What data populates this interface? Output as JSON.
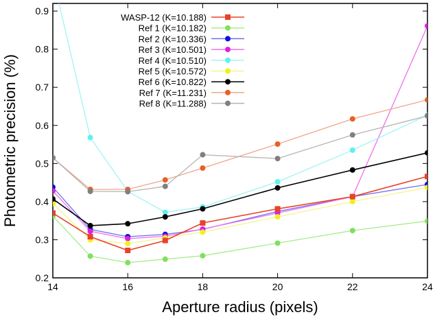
{
  "chart_data": {
    "type": "line",
    "title": "",
    "xlabel": "Aperture radius (pixels)",
    "ylabel": "Photometric precision (%)",
    "xlim": [
      14,
      24
    ],
    "ylim": [
      0.2,
      0.92
    ],
    "x_ticks": [
      14,
      16,
      18,
      20,
      22,
      24
    ],
    "y_ticks": [
      0.2,
      0.3,
      0.4,
      0.5,
      0.6,
      0.7,
      0.8,
      0.9
    ],
    "grid": false,
    "legend_position": "top-left",
    "x": [
      14,
      15,
      16,
      17,
      18,
      20,
      22,
      24
    ],
    "series": [
      {
        "name": "WASP-12 (K=10.188)",
        "color": "#e8432a",
        "line_color": "#e8432a",
        "marker": "square",
        "values": [
          0.37,
          0.308,
          0.272,
          0.298,
          0.344,
          0.381,
          0.413,
          0.466
        ]
      },
      {
        "name": "Ref 1 (K=10.182)",
        "color": "#80e060",
        "line_color": "#a8ec8c",
        "marker": "circle",
        "values": [
          0.362,
          0.257,
          0.24,
          0.249,
          0.258,
          0.291,
          0.324,
          0.349
        ]
      },
      {
        "name": "Ref 2 (K=10.336)",
        "color": "#0f0fe0",
        "line_color": "#7070ee",
        "marker": "circle",
        "values": [
          0.438,
          0.327,
          0.308,
          0.314,
          0.327,
          0.374,
          0.413,
          0.445
        ]
      },
      {
        "name": "Ref 3 (K=10.501)",
        "color": "#e020e0",
        "line_color": "#ee70ee",
        "marker": "circle",
        "values": [
          0.428,
          0.322,
          0.303,
          0.309,
          0.328,
          0.37,
          0.413,
          0.861
        ]
      },
      {
        "name": "Ref 4 (K=10.510)",
        "color": "#60f0f0",
        "line_color": "#a0f4f4",
        "marker": "circle",
        "values": [
          0.99,
          0.568,
          0.427,
          0.372,
          0.386,
          0.452,
          0.535,
          0.627
        ]
      },
      {
        "name": "Ref 5 (K=10.572)",
        "color": "#f0f020",
        "line_color": "#f4f490",
        "marker": "circle",
        "values": [
          0.395,
          0.3,
          0.29,
          0.305,
          0.32,
          0.36,
          0.4,
          0.437
        ]
      },
      {
        "name": "Ref 6 (K=10.822)",
        "color": "#000000",
        "line_color": "#000000",
        "marker": "circle",
        "values": [
          0.407,
          0.337,
          0.342,
          0.36,
          0.381,
          0.436,
          0.483,
          0.528
        ]
      },
      {
        "name": "Ref 7 (K=11.231)",
        "color": "#e86028",
        "line_color": "#f0a48c",
        "marker": "circle",
        "values": [
          0.515,
          0.432,
          0.432,
          0.457,
          0.488,
          0.551,
          0.617,
          0.667
        ]
      },
      {
        "name": "Ref 8 (K=11.288)",
        "color": "#808080",
        "line_color": "#b4b4b4",
        "marker": "circle",
        "values": [
          0.515,
          0.427,
          0.426,
          0.44,
          0.523,
          0.513,
          0.575,
          0.625
        ]
      }
    ]
  }
}
